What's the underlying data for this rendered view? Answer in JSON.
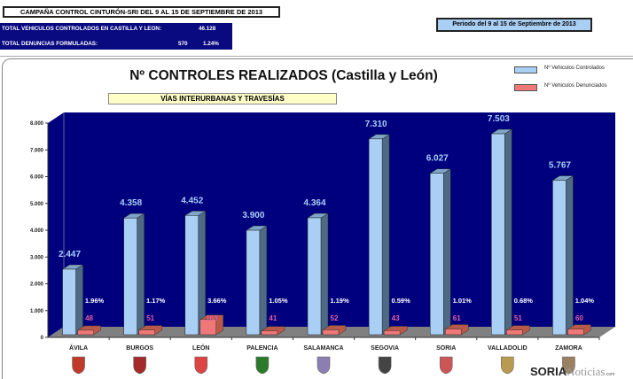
{
  "header": {
    "campaign_title": "CAMPAÑA CONTROL CINTURÓN-SRI DEL 9 AL 15 DE SEPTIEMBRE DE 2013",
    "total_controlled_label": "TOTAL VEHICULOS CONTROLADOS EN CASTILLA Y LEON:",
    "total_controlled_value": "46.128",
    "total_reports_label": "TOTAL DENUNCIAS FORMULADAS:",
    "total_reports_value": "570",
    "total_reports_pct": "1.24%",
    "period": "Periodo del 9 al 15 de Septiembre de 2013"
  },
  "watermark": {
    "bold": "SORIA",
    "light": "Noticias",
    "suffix": ".com"
  },
  "colors": {
    "background": "#00007f",
    "controlled": "#a9cff5",
    "reported": "#f07878",
    "floor": "#808080"
  },
  "chart_data": {
    "type": "bar",
    "title": "Nº CONTROLES REALIZADOS (Castilla y León)",
    "subtitle": "VÍAS INTERURBANAS  Y TRAVESÍAS",
    "categories": [
      "ÁVILA",
      "BURGOS",
      "LEÓN",
      "PALENCIA",
      "SALAMANCA",
      "SEGOVIA",
      "SORIA",
      "VALLADOLID",
      "ZAMORA"
    ],
    "series": [
      {
        "name": "Nº Vehiculos Controlados",
        "values": [
          2447,
          4358,
          4452,
          3900,
          4364,
          7310,
          6027,
          7503,
          5767
        ],
        "labels": [
          "2.447",
          "4.358",
          "4.452",
          "3.900",
          "4.364",
          "7.310",
          "6.027",
          "7.503",
          "5.767"
        ]
      },
      {
        "name": "Nº Vehiculos Denunciados",
        "values": [
          48,
          51,
          163,
          41,
          52,
          43,
          61,
          51,
          60
        ],
        "labels": [
          "48",
          "51",
          "163",
          "41",
          "52",
          "43",
          "61",
          "51",
          "60"
        ]
      }
    ],
    "percentages": [
      "1.96%",
      "1.17%",
      "3.66%",
      "1.05%",
      "1.19%",
      "0.59%",
      "1.01%",
      "0.68%",
      "1.04%"
    ],
    "yticks": [
      "0",
      "1.000",
      "2.000",
      "3.000",
      "4.000",
      "5.000",
      "6.000",
      "7.000",
      "8.000"
    ],
    "ylim": [
      0,
      8000
    ],
    "legend": "top-right",
    "style": "3d"
  }
}
